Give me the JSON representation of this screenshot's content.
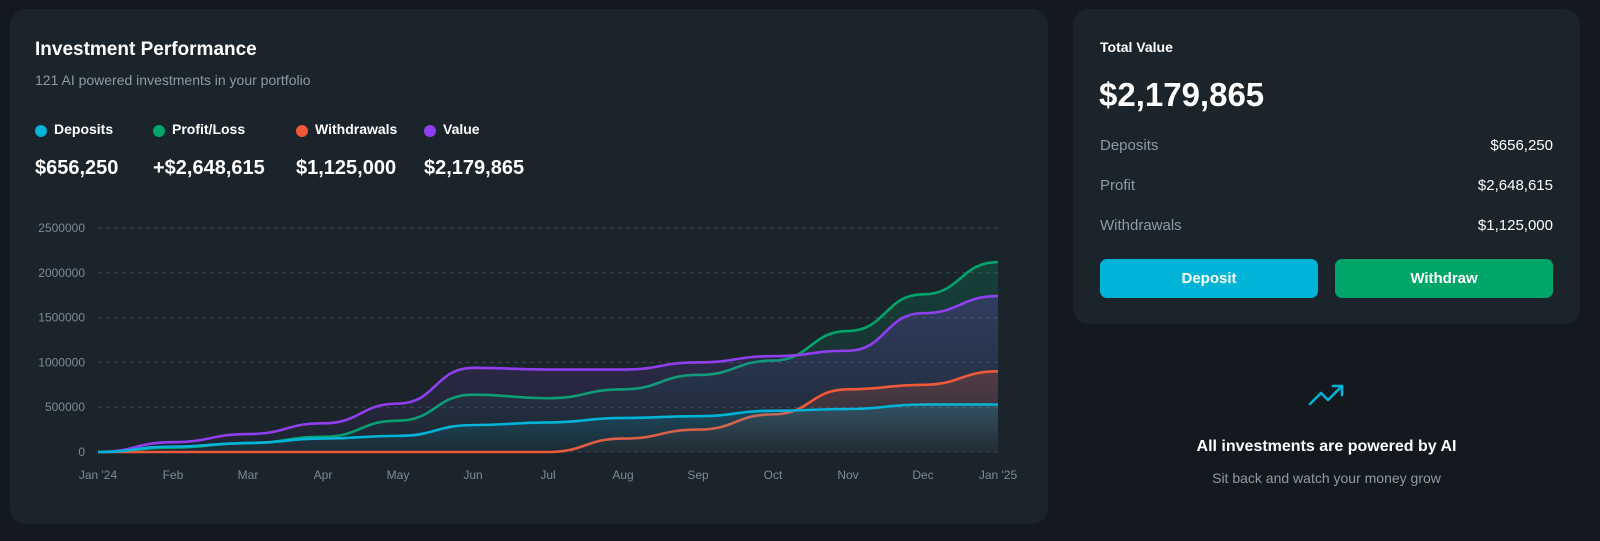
{
  "performance": {
    "title": "Investment Performance",
    "subtitle": "121 AI powered investments in your portfolio",
    "legend": [
      {
        "label": "Deposits",
        "value": "$656,250",
        "color": "#00b4d8"
      },
      {
        "label": "Profit/Loss",
        "value": "+$2,648,615",
        "color": "#00a56a"
      },
      {
        "label": "Withdrawals",
        "value": "$1,125,000",
        "color": "#f0583a"
      },
      {
        "label": "Value",
        "value": "$2,179,865",
        "color": "#8f3ff0"
      }
    ]
  },
  "chart_data": {
    "type": "area",
    "categories": [
      "Jan '24",
      "Feb",
      "Mar",
      "Apr",
      "May",
      "Jun",
      "Jul",
      "Aug",
      "Sep",
      "Oct",
      "Nov",
      "Dec",
      "Jan '25"
    ],
    "yticks": [
      "2500000",
      "2000000",
      "1500000",
      "1000000",
      "500000",
      "0"
    ],
    "ylim": [
      0,
      2500000
    ],
    "grid": true,
    "series": [
      {
        "name": "Deposits",
        "color": "#00b4d8",
        "values": [
          0,
          60000,
          100000,
          150000,
          180000,
          300000,
          330000,
          380000,
          400000,
          460000,
          480000,
          530000,
          530000
        ]
      },
      {
        "name": "Profit/Loss",
        "color": "#00a56a",
        "values": [
          0,
          50000,
          100000,
          170000,
          350000,
          640000,
          600000,
          700000,
          860000,
          1020000,
          1350000,
          1760000,
          2120000
        ]
      },
      {
        "name": "Withdrawals",
        "color": "#f0583a",
        "values": [
          0,
          0,
          0,
          0,
          0,
          0,
          0,
          150000,
          250000,
          420000,
          700000,
          750000,
          900000
        ]
      },
      {
        "name": "Value",
        "color": "#8f3ff0",
        "values": [
          0,
          110000,
          200000,
          320000,
          540000,
          940000,
          920000,
          920000,
          1000000,
          1070000,
          1130000,
          1550000,
          1740000
        ]
      }
    ]
  },
  "total": {
    "title": "Total Value",
    "value": "$2,179,865",
    "rows": [
      {
        "label": "Deposits",
        "value": "$656,250"
      },
      {
        "label": "Profit",
        "value": "$2,648,615"
      },
      {
        "label": "Withdrawals",
        "value": "$1,125,000"
      }
    ],
    "deposit_label": "Deposit",
    "withdraw_label": "Withdraw"
  },
  "ai": {
    "icon": "trending-up-icon",
    "title": "All investments are powered by AI",
    "subtitle": "Sit back and watch your money grow"
  }
}
